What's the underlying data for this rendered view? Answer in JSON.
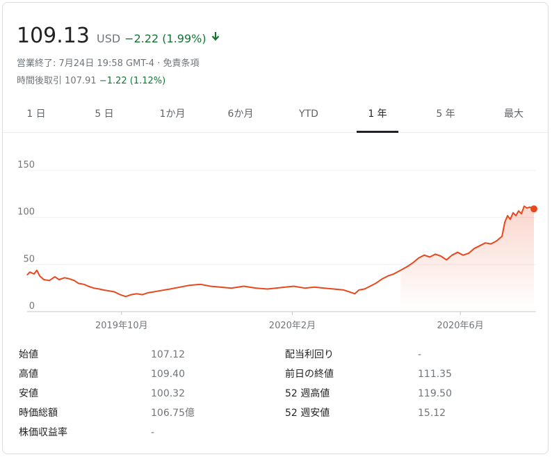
{
  "header": {
    "price": "109.13",
    "currency": "USD",
    "change": "−2.22 (1.99%)",
    "status_prefix": "営業終了: ",
    "status_time": "7月24日 19:58 GMT-4",
    "status_sep": " · ",
    "status_disclaimer": "免責条項",
    "after_hours_label": "時間後取引",
    "after_hours_price": "107.91",
    "after_hours_change": "−1.22 (1.12%)"
  },
  "tabs": [
    "1 日",
    "5 日",
    "1か月",
    "6か月",
    "YTD",
    "1 年",
    "5 年",
    "最大"
  ],
  "active_tab": "1 年",
  "colors": {
    "line": "#e8471c",
    "positive": "#137333",
    "muted": "#70757a"
  },
  "chart_data": {
    "type": "area",
    "title": "",
    "xlabel": "",
    "ylabel": "",
    "ylim": [
      0,
      150
    ],
    "y_ticks": [
      "150",
      "100",
      "50",
      "0"
    ],
    "x_tick_labels": [
      "2019年10月",
      "2020年2月",
      "2020年6月"
    ],
    "x_tick_dates": [
      "2019-10-01",
      "2020-02-01",
      "2020-06-01"
    ],
    "x_range": [
      "2019-07-25",
      "2020-07-24"
    ],
    "grid": true,
    "series": [
      {
        "x": [
          "2019-07-25",
          "2019-07-27",
          "2019-07-30",
          "2019-08-01",
          "2019-08-03",
          "2019-08-06",
          "2019-08-10",
          "2019-08-14",
          "2019-08-17",
          "2019-08-21",
          "2019-08-24",
          "2019-08-28",
          "2019-08-31",
          "2019-09-04",
          "2019-09-07",
          "2019-09-11",
          "2019-09-15",
          "2019-09-18",
          "2019-09-22",
          "2019-09-26",
          "2019-09-30",
          "2019-10-04",
          "2019-10-08",
          "2019-10-12",
          "2019-10-16",
          "2019-10-20",
          "2019-10-24",
          "2019-10-28",
          "2019-11-05",
          "2019-11-12",
          "2019-11-19",
          "2019-11-27",
          "2019-12-04",
          "2019-12-11",
          "2019-12-19",
          "2019-12-28",
          "2020-01-06",
          "2020-01-14",
          "2020-01-20",
          "2020-01-27",
          "2020-02-02",
          "2020-02-10",
          "2020-02-17",
          "2020-02-24",
          "2020-03-02",
          "2020-03-09",
          "2020-03-13",
          "2020-03-17",
          "2020-03-20",
          "2020-03-24",
          "2020-03-28",
          "2020-04-01",
          "2020-04-06",
          "2020-04-10",
          "2020-04-14",
          "2020-04-19",
          "2020-04-24",
          "2020-04-28",
          "2020-05-02",
          "2020-05-06",
          "2020-05-10",
          "2020-05-14",
          "2020-05-18",
          "2020-05-22",
          "2020-05-26",
          "2020-05-30",
          "2020-06-03",
          "2020-06-07",
          "2020-06-11",
          "2020-06-15",
          "2020-06-19",
          "2020-06-23",
          "2020-06-27",
          "2020-07-01",
          "2020-07-03",
          "2020-07-05",
          "2020-07-07",
          "2020-07-09",
          "2020-07-11",
          "2020-07-13",
          "2020-07-15",
          "2020-07-17",
          "2020-07-19",
          "2020-07-21",
          "2020-07-24"
        ],
        "values": [
          39,
          42,
          40,
          44,
          38,
          34,
          33,
          37,
          34,
          36,
          35,
          33,
          30,
          29,
          27,
          25,
          24,
          23,
          22,
          21,
          18,
          16,
          18,
          19,
          18,
          20,
          21,
          22,
          24,
          26,
          28,
          29,
          27,
          26,
          25,
          27,
          25,
          24,
          25,
          26,
          27,
          25,
          26,
          25,
          24,
          23,
          21,
          19,
          23,
          24,
          27,
          30,
          35,
          38,
          40,
          44,
          48,
          52,
          57,
          60,
          58,
          61,
          59,
          55,
          60,
          63,
          60,
          62,
          67,
          70,
          73,
          72,
          75,
          80,
          95,
          102,
          98,
          105,
          102,
          107,
          104,
          112,
          110,
          111,
          109.13
        ]
      }
    ]
  },
  "stats": {
    "left": [
      {
        "label": "始値",
        "value": "107.12"
      },
      {
        "label": "高値",
        "value": "109.40"
      },
      {
        "label": "安値",
        "value": "100.32"
      },
      {
        "label": "時価総額",
        "value": "106.75億"
      },
      {
        "label": "株価収益率",
        "value": "-"
      }
    ],
    "right": [
      {
        "label": "配当利回り",
        "value": "-"
      },
      {
        "label": "前日の終値",
        "value": "111.35"
      },
      {
        "label": "52 週高値",
        "value": "119.50"
      },
      {
        "label": "52 週安値",
        "value": "15.12"
      }
    ]
  }
}
